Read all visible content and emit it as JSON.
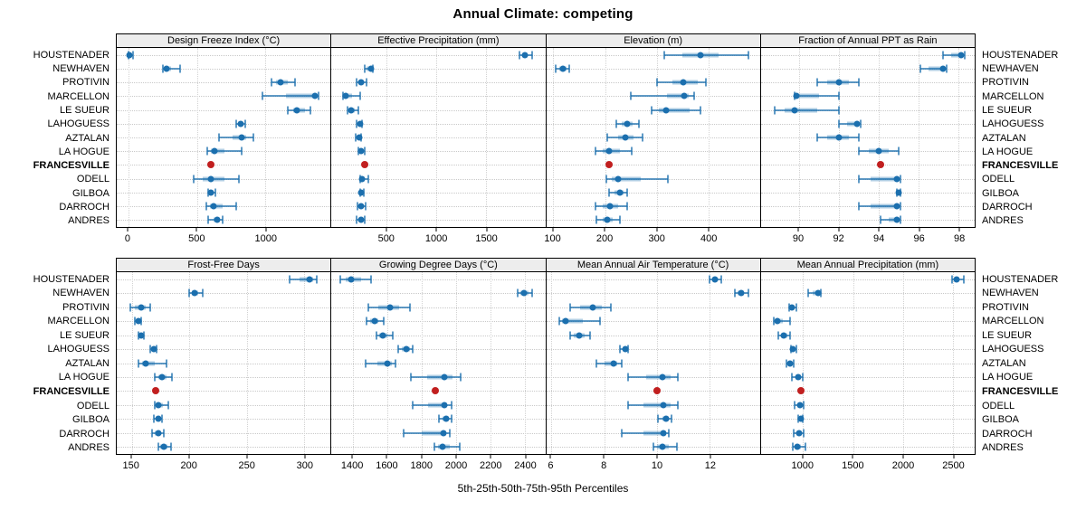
{
  "title": "Annual Climate: competing",
  "caption": "5th-25th-50th-75th-95th Percentiles",
  "sites": [
    "HOUSTENADER",
    "NEWHAVEN",
    "PROTIVIN",
    "MARCELLON",
    "LE SUEUR",
    "LAHOGUESS",
    "AZTALAN",
    "LA HOGUE",
    "FRANCESVILLE",
    "ODELL",
    "GILBOA",
    "DARROCH",
    "ANDRES"
  ],
  "highlight_site": "FRANCESVILLE",
  "percentile_labels": [
    "5th",
    "25th",
    "50th",
    "75th",
    "95th"
  ],
  "colors": {
    "series": "#1b6fae",
    "highlight": "#c11f1f",
    "strip_bg": "#ededed",
    "panel_border": "#000000",
    "grid": "#c9c9c9"
  },
  "chart_data": [
    {
      "type": "dotplot",
      "title": "Design Freeze Index (°C)",
      "xlim": [
        -85,
        1475
      ],
      "ticks": [
        0,
        500,
        1000
      ],
      "series": [
        [
          0,
          5,
          10,
          20,
          35
        ],
        [
          255,
          270,
          280,
          310,
          375
        ],
        [
          1045,
          1080,
          1110,
          1160,
          1215
        ],
        [
          975,
          1150,
          1360,
          1375,
          1390
        ],
        [
          1165,
          1200,
          1230,
          1290,
          1330
        ],
        [
          785,
          800,
          820,
          835,
          855
        ],
        [
          660,
          760,
          825,
          860,
          910
        ],
        [
          575,
          600,
          630,
          700,
          825
        ],
        [
          605,
          605,
          605,
          605,
          605
        ],
        [
          475,
          540,
          605,
          700,
          805
        ],
        [
          580,
          595,
          605,
          620,
          635
        ],
        [
          570,
          595,
          620,
          690,
          785
        ],
        [
          580,
          620,
          645,
          665,
          685
        ]
      ]
    },
    {
      "type": "dotplot",
      "title": "Effective Precipitation (mm)",
      "xlim": [
        -55,
        2095
      ],
      "ticks": [
        500,
        1000,
        1500
      ],
      "series": [
        [
          1835,
          1860,
          1890,
          1920,
          1960
        ],
        [
          275,
          300,
          345,
          355,
          365
        ],
        [
          200,
          225,
          245,
          270,
          300
        ],
        [
          65,
          80,
          90,
          150,
          230
        ],
        [
          105,
          120,
          140,
          175,
          215
        ],
        [
          195,
          215,
          230,
          240,
          250
        ],
        [
          185,
          205,
          225,
          235,
          245
        ],
        [
          215,
          230,
          245,
          260,
          280
        ],
        [
          275,
          275,
          275,
          275,
          275
        ],
        [
          230,
          240,
          250,
          280,
          320
        ],
        [
          230,
          238,
          245,
          255,
          270
        ],
        [
          210,
          225,
          240,
          260,
          285
        ],
        [
          200,
          225,
          245,
          260,
          280
        ]
      ]
    },
    {
      "type": "dotplot",
      "title": "Elevation (m)",
      "xlim": [
        86,
        500
      ],
      "ticks": [
        100,
        200,
        300,
        400
      ],
      "series": [
        [
          315,
          350,
          385,
          420,
          477
        ],
        [
          105,
          112,
          119,
          125,
          130
        ],
        [
          300,
          330,
          352,
          380,
          396
        ],
        [
          250,
          320,
          353,
          362,
          372
        ],
        [
          290,
          305,
          319,
          363,
          385
        ],
        [
          222,
          232,
          242,
          253,
          265
        ],
        [
          205,
          225,
          240,
          255,
          272
        ],
        [
          182,
          195,
          207,
          228,
          251
        ],
        [
          207,
          207,
          207,
          207,
          207
        ],
        [
          203,
          213,
          225,
          270,
          321
        ],
        [
          207,
          218,
          228,
          235,
          243
        ],
        [
          181,
          196,
          210,
          225,
          243
        ],
        [
          183,
          195,
          205,
          215,
          228
        ]
      ]
    },
    {
      "type": "dotplot",
      "title": "Fraction of Annual PPT as Rain",
      "xlim": [
        88.1,
        98.8
      ],
      "ticks": [
        90,
        92,
        94,
        96,
        98
      ],
      "series": [
        [
          97.2,
          97.6,
          98.1,
          98.2,
          98.3
        ],
        [
          96.1,
          96.5,
          97.2,
          97.3,
          97.4
        ],
        [
          90.9,
          91.4,
          92.0,
          92.5,
          93.0
        ],
        [
          89.8,
          89.8,
          89.9,
          91.0,
          92.0
        ],
        [
          88.8,
          89.3,
          89.8,
          90.9,
          92.0
        ],
        [
          92.0,
          92.4,
          92.9,
          93.0,
          93.1
        ],
        [
          90.9,
          91.4,
          92.0,
          92.5,
          93.0
        ],
        [
          93.0,
          93.5,
          94.0,
          94.5,
          95.0
        ],
        [
          94.1,
          94.1,
          94.1,
          94.1,
          94.1
        ],
        [
          93.0,
          93.6,
          94.9,
          95.0,
          95.1
        ],
        [
          94.9,
          94.9,
          95.0,
          95.0,
          95.1
        ],
        [
          93.0,
          93.6,
          94.9,
          95.0,
          95.1
        ],
        [
          94.1,
          94.5,
          94.9,
          95.0,
          95.1
        ]
      ]
    },
    {
      "type": "dotplot",
      "title": "Frost-Free Days",
      "xlim": [
        137,
        323
      ],
      "ticks": [
        150,
        200,
        250,
        300
      ],
      "series": [
        [
          287,
          296,
          305,
          308,
          311
        ],
        [
          200,
          202,
          205,
          208,
          212
        ],
        [
          149,
          153,
          158,
          162,
          166
        ],
        [
          153,
          154,
          156,
          157,
          158
        ],
        [
          156,
          157,
          158,
          160,
          161
        ],
        [
          166,
          167,
          169,
          170,
          172
        ],
        [
          156,
          159,
          162,
          170,
          180
        ],
        [
          170,
          173,
          176,
          180,
          185
        ],
        [
          171,
          171,
          171,
          171,
          171
        ],
        [
          170,
          171,
          173,
          177,
          182
        ],
        [
          169,
          171,
          173,
          174,
          176
        ],
        [
          168,
          170,
          173,
          175,
          178
        ],
        [
          173,
          175,
          178,
          181,
          184
        ]
      ]
    },
    {
      "type": "dotplot",
      "title": "Growing Degree Days (°C)",
      "xlim": [
        1275,
        2520
      ],
      "ticks": [
        1400,
        1600,
        1800,
        2000,
        2200,
        2400
      ],
      "series": [
        [
          1325,
          1360,
          1390,
          1445,
          1505
        ],
        [
          2360,
          2375,
          2395,
          2420,
          2445
        ],
        [
          1490,
          1550,
          1615,
          1670,
          1730
        ],
        [
          1480,
          1500,
          1525,
          1550,
          1580
        ],
        [
          1535,
          1555,
          1575,
          1600,
          1630
        ],
        [
          1665,
          1685,
          1710,
          1730,
          1750
        ],
        [
          1475,
          1540,
          1600,
          1625,
          1650
        ],
        [
          1735,
          1830,
          1935,
          1980,
          2025
        ],
        [
          1880,
          1880,
          1880,
          1880,
          1880
        ],
        [
          1750,
          1840,
          1930,
          1950,
          1975
        ],
        [
          1900,
          1920,
          1945,
          1960,
          1975
        ],
        [
          1695,
          1800,
          1925,
          1945,
          1965
        ],
        [
          1875,
          1895,
          1920,
          1965,
          2020
        ]
      ]
    },
    {
      "type": "dotplot",
      "title": "Mean Annual Air Temperature (°C)",
      "xlim": [
        5.8,
        13.9
      ],
      "ticks": [
        6,
        8,
        10,
        12
      ],
      "series": [
        [
          12.0,
          12.1,
          12.2,
          12.3,
          12.45
        ],
        [
          12.95,
          13.05,
          13.2,
          13.3,
          13.45
        ],
        [
          6.7,
          7.1,
          7.55,
          7.9,
          8.25
        ],
        [
          6.3,
          6.4,
          6.55,
          7.2,
          7.85
        ],
        [
          6.7,
          6.85,
          7.05,
          7.25,
          7.45
        ],
        [
          8.6,
          8.7,
          8.8,
          8.85,
          8.9
        ],
        [
          7.7,
          8.0,
          8.35,
          8.5,
          8.65
        ],
        [
          8.9,
          9.6,
          10.2,
          10.5,
          10.8
        ],
        [
          10.0,
          10.0,
          10.0,
          10.0,
          10.0
        ],
        [
          8.9,
          9.5,
          10.25,
          10.5,
          10.8
        ],
        [
          10.05,
          10.2,
          10.35,
          10.45,
          10.55
        ],
        [
          8.65,
          9.5,
          10.25,
          10.35,
          10.45
        ],
        [
          9.85,
          10.0,
          10.2,
          10.45,
          10.75
        ]
      ]
    },
    {
      "type": "dotplot",
      "title": "Mean Annual Precipitation (mm)",
      "xlim": [
        577,
        2720
      ],
      "ticks": [
        1000,
        1500,
        2000,
        2500
      ],
      "series": [
        [
          2495,
          2515,
          2540,
          2570,
          2610
        ],
        [
          1055,
          1100,
          1155,
          1165,
          1175
        ],
        [
          860,
          875,
          890,
          910,
          935
        ],
        [
          710,
          725,
          740,
          800,
          870
        ],
        [
          750,
          780,
          810,
          840,
          870
        ],
        [
          875,
          885,
          900,
          915,
          930
        ],
        [
          830,
          850,
          870,
          885,
          905
        ],
        [
          890,
          920,
          950,
          975,
          995
        ],
        [
          980,
          980,
          980,
          980,
          980
        ],
        [
          915,
          940,
          965,
          985,
          1005
        ],
        [
          950,
          962,
          975,
          985,
          995
        ],
        [
          905,
          930,
          960,
          985,
          1005
        ],
        [
          900,
          920,
          945,
          980,
          1020
        ]
      ]
    }
  ]
}
